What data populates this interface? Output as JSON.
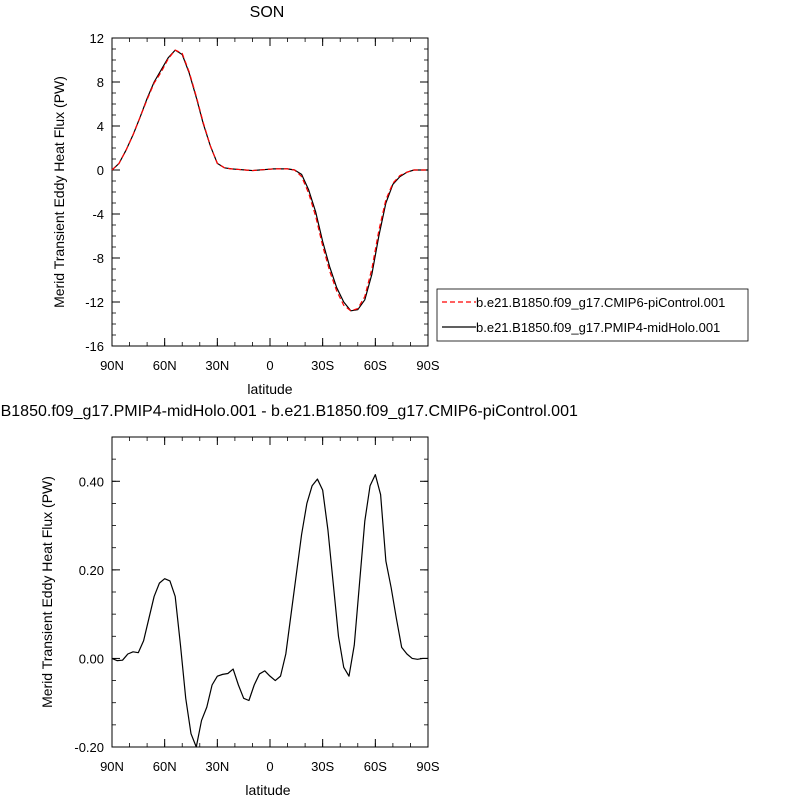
{
  "chart_data": [
    {
      "type": "line",
      "title": "SON",
      "xlabel": "latitude",
      "ylabel": "Merid Transient Eddy Heat Flux (PW)",
      "xlim": [
        -90,
        90
      ],
      "ylim": [
        -16,
        12
      ],
      "xticks": [
        {
          "value": -90,
          "label": "90N"
        },
        {
          "value": -60,
          "label": "60N"
        },
        {
          "value": -30,
          "label": "30N"
        },
        {
          "value": 0,
          "label": "0"
        },
        {
          "value": 30,
          "label": "30S"
        },
        {
          "value": 60,
          "label": "60S"
        },
        {
          "value": 90,
          "label": "90S"
        }
      ],
      "yticks": [
        {
          "value": -16,
          "label": "-16"
        },
        {
          "value": -12,
          "label": "-12"
        },
        {
          "value": -8,
          "label": "-8"
        },
        {
          "value": -4,
          "label": "-4"
        },
        {
          "value": 0,
          "label": "0"
        },
        {
          "value": 4,
          "label": "4"
        },
        {
          "value": 8,
          "label": "8"
        },
        {
          "value": 12,
          "label": "12"
        }
      ],
      "legend_position": "right",
      "series": [
        {
          "name": "b.e21.B1850.f09_g17.CMIP6-piControl.001",
          "color": "#ff0000",
          "dash": true,
          "x": [
            -90,
            -86,
            -82,
            -78,
            -74,
            -70,
            -66,
            -62,
            -58,
            -54,
            -50,
            -46,
            -42,
            -38,
            -34,
            -30,
            -26,
            -22,
            -18,
            -14,
            -10,
            -6,
            -2,
            2,
            6,
            10,
            14,
            18,
            22,
            26,
            30,
            34,
            38,
            42,
            46,
            50,
            54,
            58,
            62,
            66,
            70,
            74,
            78,
            82,
            86,
            90
          ],
          "y": [
            0,
            0.6,
            1.8,
            3.2,
            4.8,
            6.4,
            7.9,
            8.9,
            10.1,
            10.9,
            10.6,
            8.9,
            6.7,
            4.3,
            2.2,
            0.6,
            0.2,
            0.1,
            0.05,
            0,
            -0.05,
            0,
            0.05,
            0.1,
            0.1,
            0.1,
            0,
            -0.6,
            -2.1,
            -4.2,
            -6.9,
            -9.2,
            -11.0,
            -12.3,
            -12.8,
            -12.6,
            -11.5,
            -9.0,
            -5.5,
            -2.7,
            -1.2,
            -0.5,
            -0.2,
            0,
            0,
            0
          ]
        },
        {
          "name": "b.e21.B1850.f09_g17.PMIP4-midHolo.001",
          "color": "#000000",
          "dash": false,
          "x": [
            -90,
            -86,
            -82,
            -78,
            -74,
            -70,
            -66,
            -62,
            -58,
            -54,
            -50,
            -46,
            -42,
            -38,
            -34,
            -30,
            -26,
            -22,
            -18,
            -14,
            -10,
            -6,
            -2,
            2,
            6,
            10,
            14,
            18,
            22,
            26,
            30,
            34,
            38,
            42,
            46,
            50,
            54,
            58,
            62,
            66,
            70,
            74,
            78,
            82,
            86,
            90
          ],
          "y": [
            0,
            0.6,
            1.8,
            3.2,
            4.8,
            6.5,
            8.0,
            9.1,
            10.2,
            10.9,
            10.5,
            8.8,
            6.6,
            4.2,
            2.2,
            0.6,
            0.2,
            0.1,
            0.05,
            0,
            -0.05,
            0,
            0.05,
            0.1,
            0.1,
            0.1,
            0,
            -0.4,
            -1.8,
            -3.8,
            -6.5,
            -8.8,
            -10.7,
            -12.0,
            -12.8,
            -12.7,
            -11.8,
            -9.5,
            -6.0,
            -3.0,
            -1.3,
            -0.6,
            -0.2,
            0,
            0,
            0
          ]
        }
      ]
    },
    {
      "type": "line",
      "title": "b.e21.B1850.f09_g17.PMIP4-midHolo.001 - b.e21.B1850.f09_g17.CMIP6-piControl.001",
      "xlabel": "latitude",
      "ylabel": "Merid Transient Eddy Heat Flux (PW)",
      "xlim": [
        -90,
        90
      ],
      "ylim": [
        -0.2,
        0.5
      ],
      "xticks": [
        {
          "value": -90,
          "label": "90N"
        },
        {
          "value": -60,
          "label": "60N"
        },
        {
          "value": -30,
          "label": "30N"
        },
        {
          "value": 0,
          "label": "0"
        },
        {
          "value": 30,
          "label": "30S"
        },
        {
          "value": 60,
          "label": "60S"
        },
        {
          "value": 90,
          "label": "90S"
        }
      ],
      "yticks": [
        {
          "value": -0.2,
          "label": "-0.20"
        },
        {
          "value": 0.0,
          "label": "0.00"
        },
        {
          "value": 0.2,
          "label": "0.20"
        },
        {
          "value": 0.4,
          "label": "0.40"
        }
      ],
      "series": [
        {
          "color": "#000000",
          "dash": false,
          "x": [
            -90,
            -87,
            -84,
            -81,
            -78,
            -75,
            -72,
            -69,
            -66,
            -63,
            -60,
            -57,
            -54,
            -51,
            -48,
            -45,
            -42,
            -39,
            -36,
            -33,
            -30,
            -27,
            -24,
            -21,
            -18,
            -15,
            -12,
            -9,
            -6,
            -3,
            0,
            3,
            6,
            9,
            12,
            15,
            18,
            21,
            24,
            27,
            30,
            33,
            36,
            39,
            42,
            45,
            48,
            51,
            54,
            57,
            60,
            63,
            66,
            69,
            72,
            75,
            78,
            81,
            84,
            87,
            90
          ],
          "y": [
            0,
            -0.005,
            -0.004,
            0.01,
            0.015,
            0.013,
            0.04,
            0.09,
            0.14,
            0.17,
            0.18,
            0.175,
            0.14,
            0.03,
            -0.09,
            -0.17,
            -0.2,
            -0.14,
            -0.11,
            -0.06,
            -0.04,
            -0.036,
            -0.034,
            -0.024,
            -0.06,
            -0.09,
            -0.095,
            -0.06,
            -0.035,
            -0.028,
            -0.04,
            -0.05,
            -0.04,
            0.01,
            0.1,
            0.19,
            0.28,
            0.35,
            0.39,
            0.405,
            0.38,
            0.29,
            0.17,
            0.05,
            -0.02,
            -0.04,
            0.03,
            0.17,
            0.31,
            0.39,
            0.415,
            0.37,
            0.22,
            0.16,
            0.09,
            0.025,
            0.01,
            0,
            -0.002,
            0,
            0
          ]
        }
      ]
    }
  ]
}
